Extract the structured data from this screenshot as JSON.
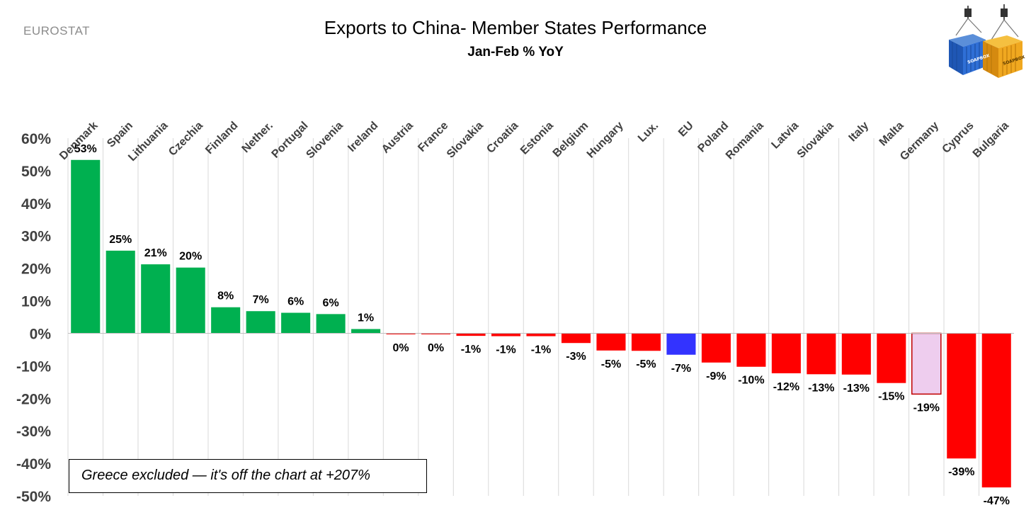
{
  "header": {
    "source": "EUROSTAT",
    "title": "Exports to China- Member States Performance",
    "subtitle": "Jan-Feb % YoY"
  },
  "note": "Greece excluded — it's off the chart at +207%",
  "logo": {
    "icon": "shipping-containers-logo-icon",
    "text": "SOAPBOX"
  },
  "colors": {
    "positive": "#00b050",
    "negative": "#ff0000",
    "eu": "#3333ff",
    "highlight_fill": "#eecdee",
    "highlight_border": "#c00000",
    "grid": "#d9d9d9",
    "axis": "#404040"
  },
  "chart_data": {
    "type": "bar",
    "title": "Exports to China- Member States Performance",
    "subtitle": "Jan-Feb % YoY",
    "categories": [
      "Denmark",
      "Spain",
      "Lithuania",
      "Czechia",
      "Finland",
      "Nether.",
      "Portugal",
      "Slovenia",
      "Ireland",
      "Austria",
      "France",
      "Slovakia",
      "Croatia",
      "Estonia",
      "Belgium",
      "Hungary",
      "Lux.",
      "EU",
      "Poland",
      "Romania",
      "Latvia",
      "Slovakia",
      "Italy",
      "Malta",
      "Germany",
      "Cyprus",
      "Bulgaria"
    ],
    "values": [
      53.3,
      25.4,
      21.2,
      20.2,
      8.0,
      6.8,
      6.3,
      5.9,
      1.3,
      -0.3,
      -0.3,
      -0.8,
      -0.9,
      -0.9,
      -3.0,
      -5.3,
      -5.4,
      -6.6,
      -9.0,
      -10.3,
      -12.3,
      -12.6,
      -12.7,
      -15.3,
      -18.7,
      -38.5,
      -47.4
    ],
    "labels": [
      "53%",
      "25%",
      "21%",
      "20%",
      "8%",
      "7%",
      "6%",
      "6%",
      "1%",
      "0%",
      "0%",
      "-1%",
      "-1%",
      "-1%",
      "-3%",
      "-5%",
      "-5%",
      "-7%",
      "-9%",
      "-10%",
      "-12%",
      "-13%",
      "-13%",
      "-15%",
      "-19%",
      "-39%",
      "-47%"
    ],
    "special": {
      "EU": "eu",
      "Germany": "highlight"
    },
    "ylim": [
      -50,
      60
    ],
    "yticks": [
      60,
      50,
      40,
      30,
      20,
      10,
      0,
      -10,
      -20,
      -30,
      -40,
      -50
    ],
    "ytick_labels": [
      "60%",
      "50%",
      "40%",
      "30%",
      "20%",
      "10%",
      "0%",
      "-10%",
      "-20%",
      "-30%",
      "-40%",
      "-50%"
    ],
    "grid": true,
    "xlabel": "",
    "ylabel": ""
  }
}
